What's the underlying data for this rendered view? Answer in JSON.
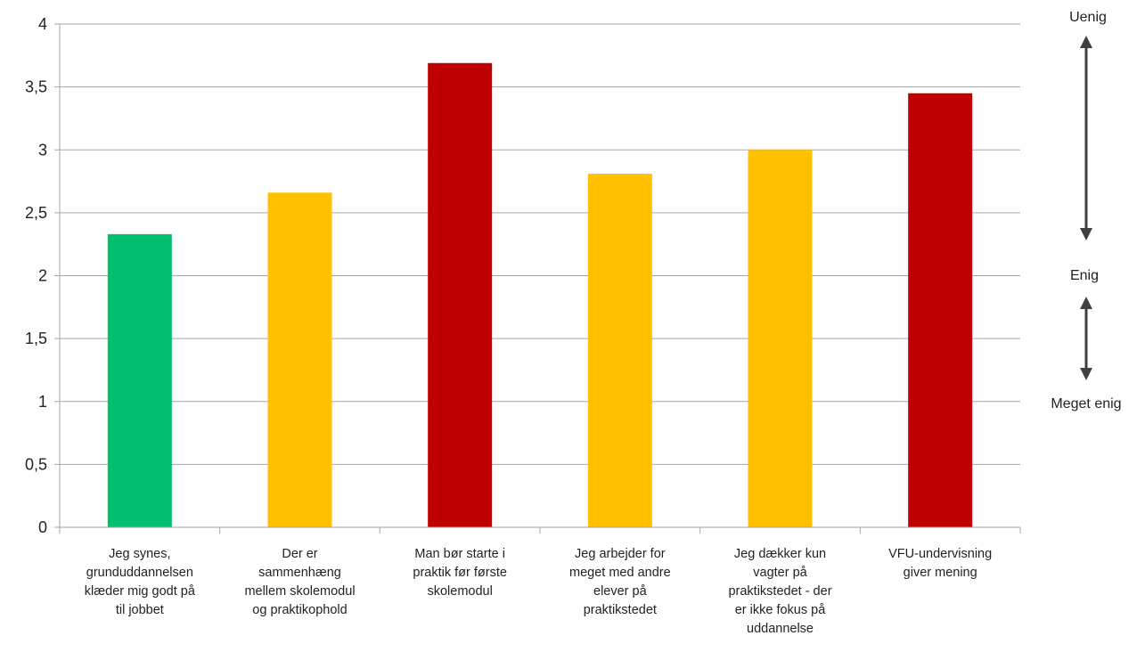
{
  "chart_data": {
    "type": "bar",
    "title": "",
    "xlabel": "",
    "ylabel": "",
    "ylim": [
      0,
      4
    ],
    "yticks": [
      "0",
      "0,5",
      "1",
      "1,5",
      "2",
      "2,5",
      "3",
      "3,5",
      "4"
    ],
    "grid": true,
    "categories": [
      [
        "Jeg synes,",
        "grunduddannelsen",
        "klæder mig godt på",
        "til jobbet"
      ],
      [
        "Der er",
        "sammenhæng",
        "mellem skolemodul",
        "og praktikophold"
      ],
      [
        "Man bør starte i",
        "praktik før første",
        "skolemodul"
      ],
      [
        "Jeg arbejder for",
        "meget med andre",
        "elever på",
        "praktikstedet"
      ],
      [
        "Jeg dækker kun",
        "vagter på",
        "praktikstedet - der",
        "er ikke fokus på",
        "uddannelse"
      ],
      [
        "VFU-undervisning",
        "giver mening"
      ]
    ],
    "values": [
      2.33,
      2.66,
      3.69,
      2.81,
      3.0,
      3.45
    ],
    "bar_colors": [
      "#00bf6f",
      "#ffc000",
      "#c00000",
      "#ffc000",
      "#ffc000",
      "#c00000"
    ],
    "scale_legend": {
      "top": "Uenig",
      "middle": "Enig",
      "bottom": "Meget enig",
      "arrow_color": "#404040"
    }
  }
}
